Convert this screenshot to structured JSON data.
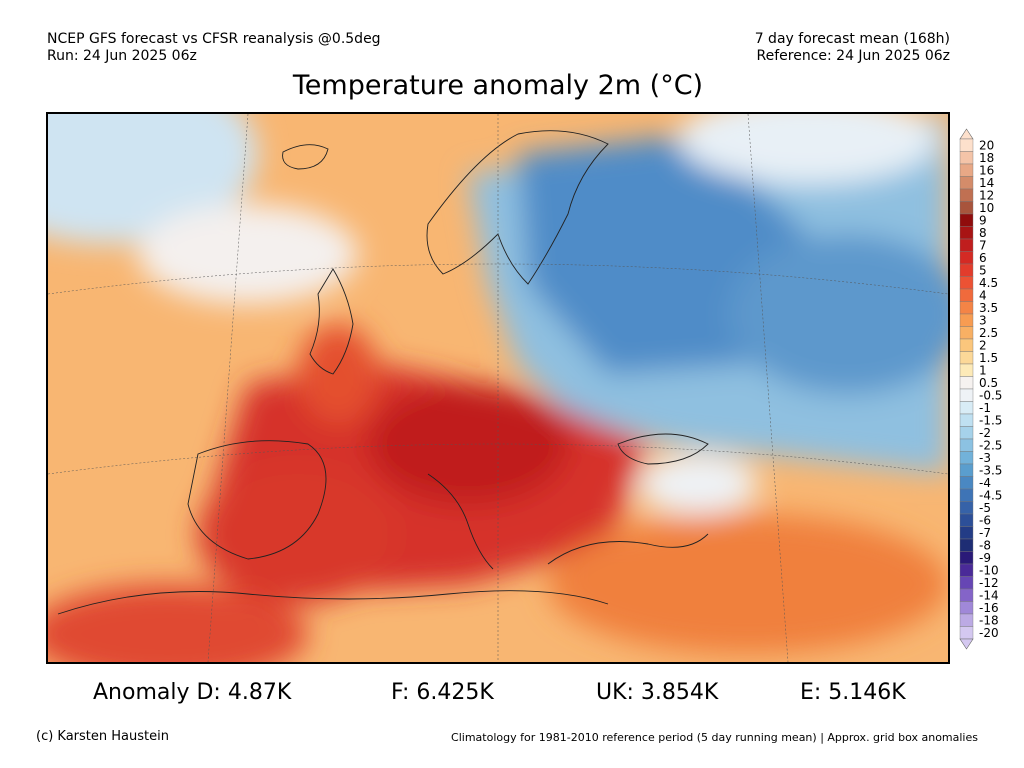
{
  "header": {
    "left_line1": "NCEP GFS forecast vs CFSR reanalysis @0.5deg",
    "left_line2": "Run: 24 Jun 2025 06z",
    "right_line1": "7 day forecast mean (168h)",
    "right_line2": "Reference: 24 Jun 2025 06z"
  },
  "title": "Temperature anomaly 2m (°C)",
  "colorbar": {
    "labels": [
      "20",
      "18",
      "16",
      "14",
      "12",
      "10",
      "9",
      "8",
      "7",
      "6",
      "5",
      "4.5",
      "4",
      "3.5",
      "3",
      "2.5",
      "2",
      "1.5",
      "1",
      "0.5",
      "-0.5",
      "-1",
      "-1.5",
      "-2",
      "-2.5",
      "-3",
      "-3.5",
      "-4",
      "-4.5",
      "-5",
      "-6",
      "-7",
      "-8",
      "-9",
      "-10",
      "-12",
      "-14",
      "-16",
      "-18",
      "-20"
    ],
    "colors": [
      "#fde0cc",
      "#f4c4a8",
      "#e8a886",
      "#d48c6a",
      "#c07052",
      "#a8543c",
      "#900c0c",
      "#a81414",
      "#c01e1e",
      "#d42a24",
      "#e23c2c",
      "#ec5234",
      "#f06a3c",
      "#f48446",
      "#f79c52",
      "#f8b064",
      "#fbc67c",
      "#fcd898",
      "#fdeab8",
      "#f6f2f0",
      "#eef2f6",
      "#d8ecf6",
      "#bfe0f1",
      "#a6d2ea",
      "#8cc2e2",
      "#72b2da",
      "#5a9ece",
      "#4a88c2",
      "#3e74b6",
      "#3662a8",
      "#2c4f98",
      "#233c86",
      "#1e2d74",
      "#2a1a78",
      "#4a2a98",
      "#6646b4",
      "#8464c8",
      "#a088d8",
      "#bcaae4",
      "#d4c8f0"
    ]
  },
  "anomalies": [
    {
      "label": "Anomaly D: 4.87K"
    },
    {
      "label": "F: 6.425K"
    },
    {
      "label": "UK: 3.854K"
    },
    {
      "label": "E: 5.146K"
    }
  ],
  "footer": {
    "credit": "(c) Karsten Haustein",
    "note": "Climatology for 1981-2010 reference period (5 day running mean) | Approx. grid box anomalies"
  }
}
